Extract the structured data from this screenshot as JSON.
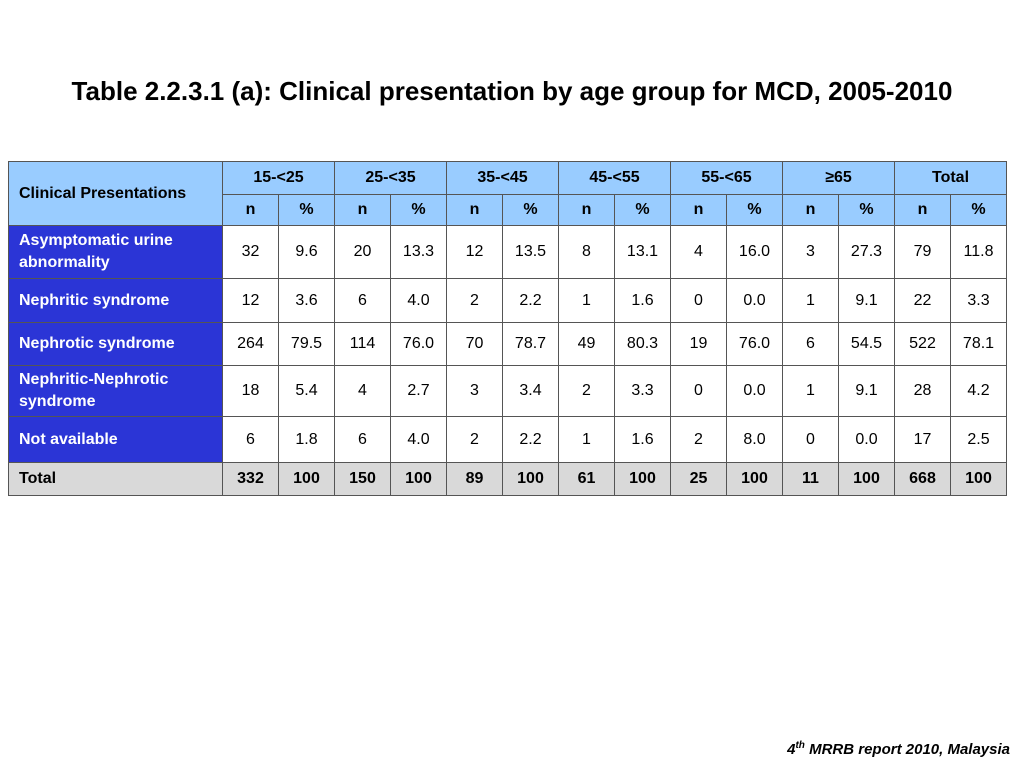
{
  "title": "Table 2.2.3.1 (a): Clinical presentation by age group for MCD, 2005-2010",
  "table": {
    "corner_label": "Clinical Presentations",
    "groups": [
      "15-<25",
      "25-<35",
      "35-<45",
      "45-<55",
      "55-<65",
      "≥65",
      "Total"
    ],
    "sub_n": "n",
    "sub_pct": "%",
    "rows": [
      {
        "label": "Asymptomatic urine abnormality",
        "values": [
          "32",
          "9.6",
          "20",
          "13.3",
          "12",
          "13.5",
          "8",
          "13.1",
          "4",
          "16.0",
          "3",
          "27.3",
          "79",
          "11.8"
        ]
      },
      {
        "label": "Nephritic syndrome",
        "values": [
          "12",
          "3.6",
          "6",
          "4.0",
          "2",
          "2.2",
          "1",
          "1.6",
          "0",
          "0.0",
          "1",
          "9.1",
          "22",
          "3.3"
        ]
      },
      {
        "label": "Nephrotic syndrome",
        "values": [
          "264",
          "79.5",
          "114",
          "76.0",
          "70",
          "78.7",
          "49",
          "80.3",
          "19",
          "76.0",
          "6",
          "54.5",
          "522",
          "78.1"
        ]
      },
      {
        "label": "Nephritic-Nephrotic syndrome",
        "values": [
          "18",
          "5.4",
          "4",
          "2.7",
          "3",
          "3.4",
          "2",
          "3.3",
          "0",
          "0.0",
          "1",
          "9.1",
          "28",
          "4.2"
        ]
      },
      {
        "label": "Not available",
        "values": [
          "6",
          "1.8",
          "6",
          "4.0",
          "2",
          "2.2",
          "1",
          "1.6",
          "2",
          "8.0",
          "0",
          "0.0",
          "17",
          "2.5"
        ]
      }
    ],
    "total": {
      "label": "Total",
      "values": [
        "332",
        "100",
        "150",
        "100",
        "89",
        "100",
        "61",
        "100",
        "25",
        "100",
        "11",
        "100",
        "668",
        "100"
      ]
    }
  },
  "footer": {
    "ordinal_num": "4",
    "ordinal_sup": "th",
    "text": " MRRB report 2010, Malaysia"
  },
  "colors": {
    "header_bg": "#99ccff",
    "rowhead_bg": "#2b35d6",
    "total_bg": "#d9d9d9"
  }
}
